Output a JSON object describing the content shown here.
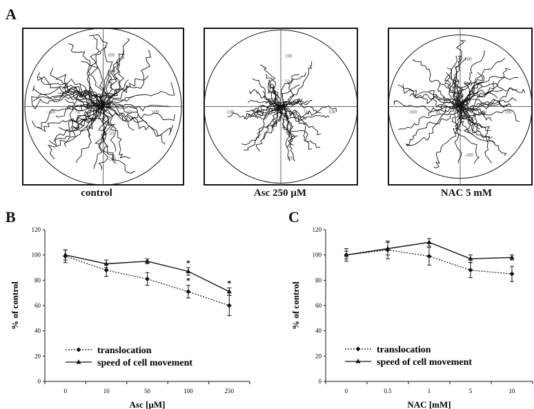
{
  "panels": {
    "A": {
      "letter": "A",
      "plots": [
        {
          "id": "control",
          "label": "control",
          "axis_ticks": [
            "-100",
            "-50",
            "50",
            "100",
            "100",
            "50",
            "-50",
            "-100"
          ]
        },
        {
          "id": "asc",
          "label": "Asc 250 µM",
          "axis_ticks": [
            "-100",
            "-50",
            "50",
            "100",
            "100",
            "50",
            "-50",
            "-100"
          ]
        },
        {
          "id": "nac",
          "label": "NAC 5 mM",
          "axis_ticks": [
            "-100",
            "-50",
            "50",
            "100",
            "100",
            "50",
            "-50",
            "-100"
          ]
        }
      ]
    },
    "B": {
      "letter": "B"
    },
    "C": {
      "letter": "C"
    }
  },
  "chart_data": [
    {
      "type": "line",
      "panel": "B",
      "categories": [
        "0",
        "10",
        "50",
        "100",
        "250"
      ],
      "xlabel": "Asc [µM]",
      "ylabel": "% of control",
      "ylim": [
        0,
        120
      ],
      "yticks": [
        "0",
        "20",
        "40",
        "60",
        "80",
        "100",
        "120"
      ],
      "series": [
        {
          "name": "translocation",
          "style": "dotted",
          "marker": "diamond",
          "values": [
            99,
            88,
            81,
            71,
            60
          ],
          "errors": [
            5,
            5,
            5,
            5,
            8
          ]
        },
        {
          "name": "speed of cell movement",
          "style": "solid",
          "marker": "triangle",
          "values": [
            100,
            93,
            95,
            87,
            71
          ],
          "errors": [
            4,
            3,
            2,
            3,
            3
          ]
        }
      ],
      "annotations": [
        {
          "category": "100",
          "text": "*"
        },
        {
          "category": "100",
          "text": "*"
        },
        {
          "category": "250",
          "text": "*"
        }
      ],
      "legend_position": "bottom-left"
    },
    {
      "type": "line",
      "panel": "C",
      "categories": [
        "0",
        "0.5",
        "1",
        "5",
        "10"
      ],
      "xlabel": "NAC [mM]",
      "ylabel": "% of control",
      "ylim": [
        0,
        120
      ],
      "yticks": [
        "0",
        "20",
        "40",
        "60",
        "80",
        "100",
        "120"
      ],
      "series": [
        {
          "name": "translocation",
          "style": "dotted",
          "marker": "diamond",
          "values": [
            100,
            104,
            99,
            88,
            85
          ],
          "errors": [
            5,
            7,
            7,
            6,
            6
          ]
        },
        {
          "name": "speed of cell movement",
          "style": "solid",
          "marker": "triangle",
          "values": [
            100,
            105,
            110,
            97,
            98
          ],
          "errors": [
            3,
            5,
            3,
            3,
            2
          ]
        }
      ],
      "annotations": [],
      "legend_position": "bottom-left"
    }
  ]
}
